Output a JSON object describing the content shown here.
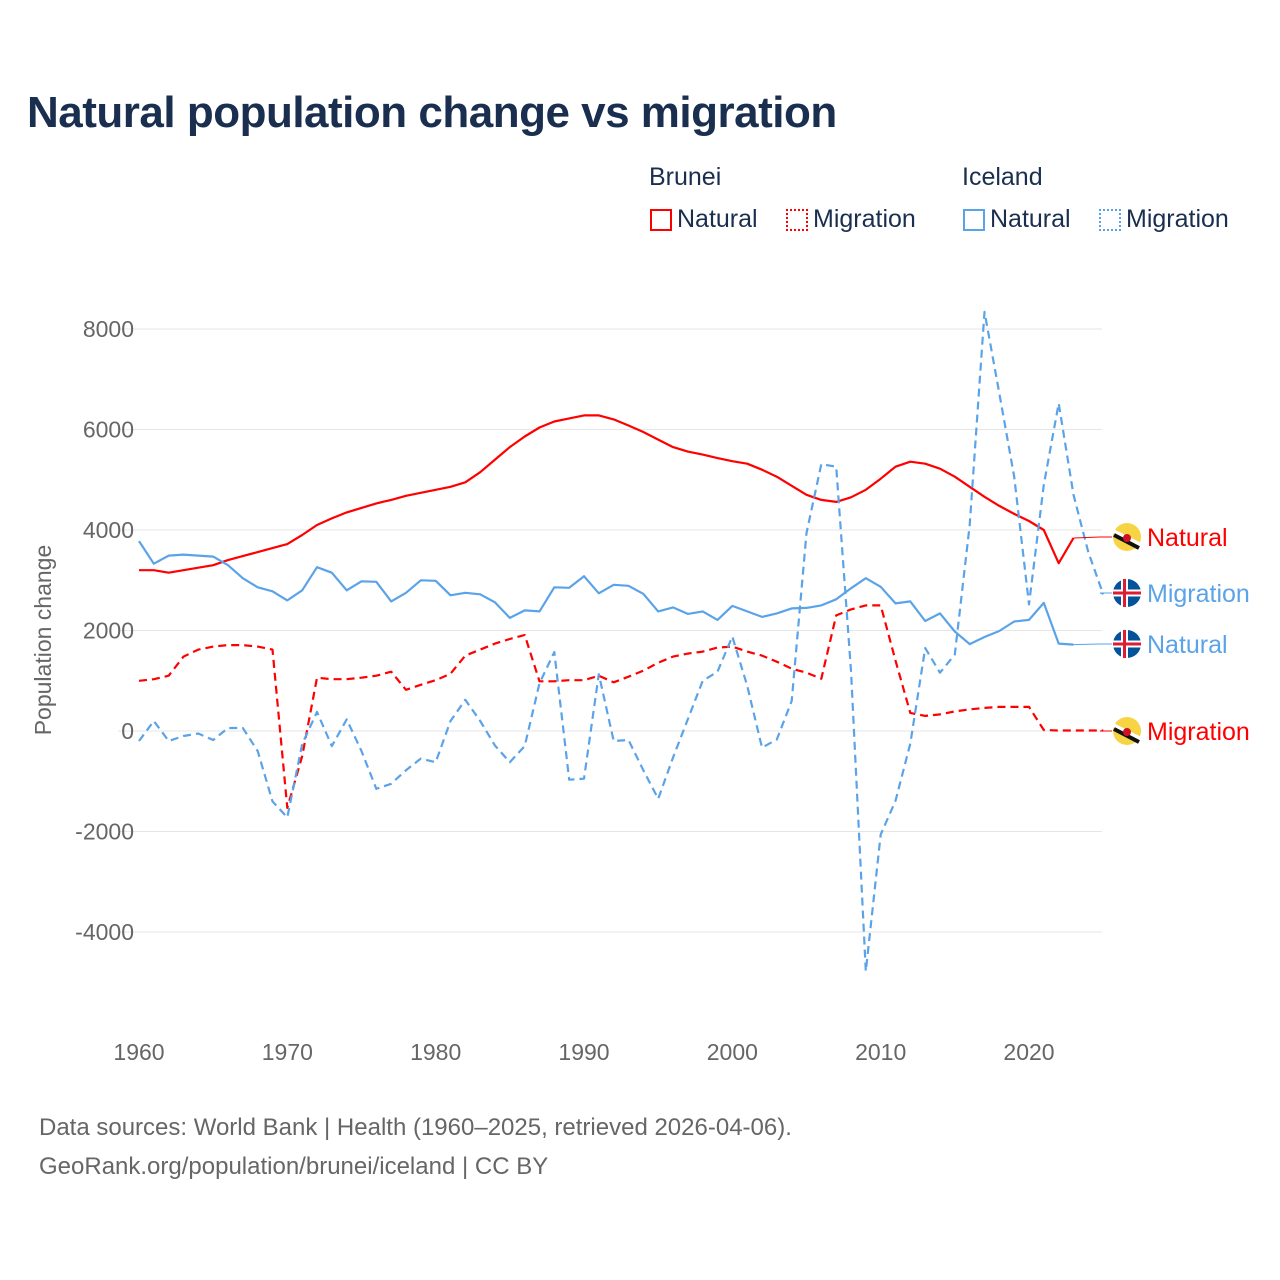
{
  "title": "Natural population change vs migration",
  "legend": {
    "groups": [
      {
        "name": "Brunei",
        "color": "#ff0000",
        "items": [
          "Natural",
          "Migration"
        ]
      },
      {
        "name": "Iceland",
        "color": "#5ba3e8",
        "items": [
          "Natural",
          "Migration"
        ]
      }
    ]
  },
  "footer": {
    "line1": "Data sources: World Bank | Health (1960–2025, retrieved 2026-04-06).",
    "line2": "GeoRank.org/population/brunei/iceland | CC BY"
  },
  "chart_data": {
    "type": "line",
    "title": "Natural population change vs migration",
    "xlabel": "",
    "ylabel": "Population change",
    "xlim": [
      1960,
      2025
    ],
    "ylim": [
      -5000,
      9000
    ],
    "yticks": [
      -4000,
      -2000,
      0,
      2000,
      4000,
      6000,
      8000
    ],
    "ytick_labels": [
      "-4000",
      "-2000",
      "0",
      "2000",
      "4000",
      "6000",
      "8000"
    ],
    "xticks": [
      1960,
      1970,
      1980,
      1990,
      2000,
      2010,
      2020
    ],
    "xtick_labels": [
      "1960",
      "1970",
      "1980",
      "1990",
      "2000",
      "2010",
      "2020"
    ],
    "grid": true,
    "legend_position": "top-right",
    "series": [
      {
        "name": "Brunei Natural",
        "country": "Brunei",
        "label": "Natural",
        "color": "#ff0000",
        "dash": false,
        "start": 1960,
        "values": [
          3200,
          3200,
          3150,
          3200,
          3250,
          3300,
          3400,
          3480,
          3560,
          3640,
          3720,
          3900,
          4100,
          4230,
          4350,
          4440,
          4530,
          4600,
          4680,
          4740,
          4800,
          4860,
          4950,
          5150,
          5400,
          5650,
          5860,
          6040,
          6160,
          6220,
          6280,
          6280,
          6200,
          6080,
          5950,
          5800,
          5650,
          5560,
          5500,
          5430,
          5370,
          5320,
          5200,
          5060,
          4880,
          4700,
          4600,
          4560,
          4650,
          4800,
          5020,
          5260,
          5360,
          5320,
          5220,
          5060,
          4860,
          4660,
          4480,
          4320,
          4180,
          4000,
          3340,
          3840
        ]
      },
      {
        "name": "Brunei Migration",
        "country": "Brunei",
        "label": "Migration",
        "color": "#ff0000",
        "dash": true,
        "start": 1960,
        "values": [
          1000,
          1030,
          1100,
          1480,
          1620,
          1680,
          1710,
          1710,
          1680,
          1620,
          -1530,
          -500,
          1060,
          1030,
          1030,
          1060,
          1100,
          1180,
          820,
          920,
          1010,
          1140,
          1500,
          1620,
          1740,
          1830,
          1910,
          990,
          990,
          1010,
          1010,
          1100,
          970,
          1080,
          1200,
          1360,
          1480,
          1540,
          1580,
          1660,
          1680,
          1580,
          1500,
          1380,
          1240,
          1160,
          1040,
          2300,
          2420,
          2500,
          2500,
          1400,
          360,
          300,
          330,
          390,
          430,
          460,
          480,
          480,
          480,
          20,
          10,
          10,
          10,
          10
        ]
      },
      {
        "name": "Iceland Natural",
        "country": "Iceland",
        "label": "Natural",
        "color": "#5ba3e8",
        "dash": false,
        "start": 1960,
        "values": [
          3780,
          3330,
          3490,
          3510,
          3490,
          3470,
          3300,
          3040,
          2860,
          2780,
          2600,
          2800,
          3260,
          3150,
          2800,
          2980,
          2970,
          2580,
          2750,
          3000,
          2990,
          2700,
          2750,
          2720,
          2560,
          2250,
          2400,
          2380,
          2860,
          2850,
          3080,
          2740,
          2910,
          2890,
          2730,
          2380,
          2460,
          2330,
          2380,
          2210,
          2490,
          2380,
          2270,
          2340,
          2440,
          2450,
          2500,
          2620,
          2840,
          3040,
          2870,
          2540,
          2580,
          2190,
          2340,
          1980,
          1730,
          1870,
          1990,
          2180,
          2210,
          2550,
          1740,
          1720
        ]
      },
      {
        "name": "Iceland Migration",
        "country": "Iceland",
        "label": "Migration",
        "color": "#5ba3e8",
        "dash": true,
        "start": 1960,
        "values": [
          -200,
          200,
          -200,
          -100,
          -50,
          -180,
          60,
          60,
          -400,
          -1400,
          -1720,
          -260,
          380,
          -300,
          230,
          -400,
          -1150,
          -1050,
          -780,
          -550,
          -620,
          200,
          620,
          200,
          -290,
          -620,
          -300,
          950,
          1570,
          -970,
          -950,
          1130,
          -200,
          -180,
          -780,
          -1350,
          -530,
          230,
          1000,
          1180,
          1880,
          900,
          -330,
          -170,
          600,
          3940,
          5310,
          5260,
          1200,
          -4780,
          -2060,
          -1390,
          -250,
          1650,
          1160,
          1520,
          4100,
          8340,
          6720,
          5060,
          2520,
          4900,
          6520,
          4700,
          3560,
          2720
        ]
      }
    ]
  }
}
